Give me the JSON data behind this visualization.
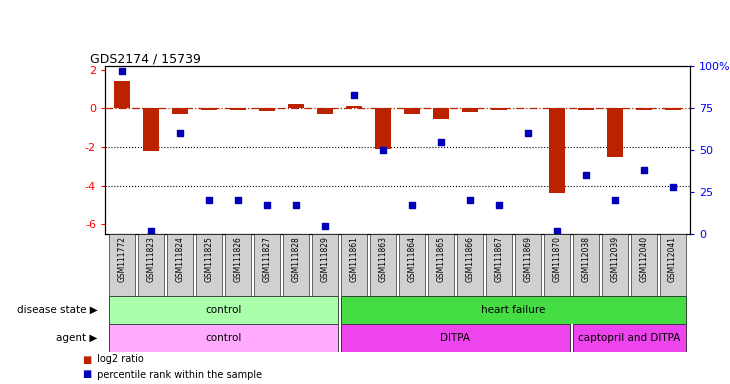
{
  "title": "GDS2174 / 15739",
  "samples": [
    "GSM111772",
    "GSM111823",
    "GSM111824",
    "GSM111825",
    "GSM111826",
    "GSM111827",
    "GSM111828",
    "GSM111829",
    "GSM111861",
    "GSM111863",
    "GSM111864",
    "GSM111865",
    "GSM111866",
    "GSM111867",
    "GSM111869",
    "GSM111870",
    "GSM112038",
    "GSM112039",
    "GSM112040",
    "GSM112041"
  ],
  "log2_ratio": [
    1.4,
    -2.2,
    -0.3,
    -0.1,
    -0.1,
    -0.15,
    0.25,
    -0.3,
    0.15,
    -2.1,
    -0.3,
    -0.55,
    -0.2,
    -0.1,
    0.05,
    -4.4,
    -0.1,
    -2.5,
    -0.1,
    -0.1
  ],
  "percentile_rank": [
    97,
    2,
    60,
    20,
    20,
    17,
    17,
    5,
    83,
    50,
    17,
    55,
    20,
    17,
    60,
    2,
    35,
    20,
    38,
    28
  ],
  "disease_state_groups": [
    {
      "label": "control",
      "start": 0,
      "end": 7,
      "color": "#AAFFAA"
    },
    {
      "label": "heart failure",
      "start": 8,
      "end": 19,
      "color": "#44DD44"
    }
  ],
  "agent_groups": [
    {
      "label": "control",
      "start": 0,
      "end": 7,
      "color": "#FFAAFF"
    },
    {
      "label": "DITPA",
      "start": 8,
      "end": 15,
      "color": "#EE44EE"
    },
    {
      "label": "captopril and DITPA",
      "start": 16,
      "end": 19,
      "color": "#EE44EE"
    }
  ],
  "bar_color": "#BB2200",
  "dot_color": "#0000BB",
  "ylim_left": [
    -6.5,
    2.2
  ],
  "ylim_right": [
    0,
    100
  ],
  "yticks_left": [
    2,
    0,
    -2,
    -4,
    -6
  ],
  "yticks_right": [
    0,
    25,
    50,
    75,
    100
  ],
  "ytick_labels_right": [
    "0",
    "25",
    "50",
    "75",
    "100%"
  ],
  "xtick_bg_color": "#D0D0D0",
  "xticklabel_fontsize": 5.5,
  "bar_width": 0.55
}
